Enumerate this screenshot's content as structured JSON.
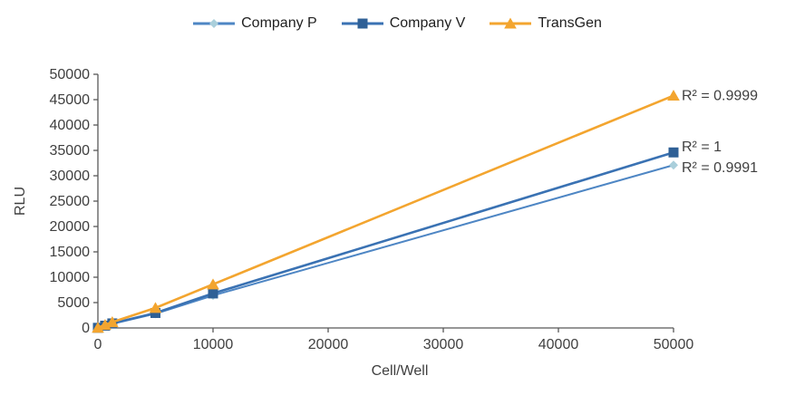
{
  "chart_data": {
    "type": "line",
    "title": "",
    "xlabel": "Cell/Well",
    "ylabel": "RLU",
    "xlim": [
      0,
      50000
    ],
    "ylim": [
      0,
      50000
    ],
    "grid": false,
    "legend_position": "top-center",
    "axis_color": "#595959",
    "tick_text_color": "#3f3f3f",
    "xtick_values": [
      0,
      10000,
      20000,
      30000,
      40000,
      50000
    ],
    "xtick_labels": [
      "0",
      "10000",
      "20000",
      "30000",
      "40000",
      "50000"
    ],
    "ytick_values": [
      0,
      5000,
      10000,
      15000,
      20000,
      25000,
      30000,
      35000,
      40000,
      45000,
      50000
    ],
    "ytick_labels": [
      "0",
      "5000",
      "10000",
      "15000",
      "20000",
      "25000",
      "30000",
      "35000",
      "40000",
      "45000",
      "50000"
    ],
    "x": [
      0,
      625,
      1250,
      5000,
      10000,
      50000
    ],
    "series": [
      {
        "name": "Company P",
        "r2_label": "R² = 0.9991",
        "r2_dy": 3,
        "line_color": "#4e86c4",
        "line_width": 2,
        "marker": "diamond",
        "marker_color": "#aacfdb",
        "marker_size": 5,
        "values": [
          30,
          400,
          800,
          2800,
          6400,
          32100
        ]
      },
      {
        "name": "Company V",
        "r2_label": "R² = 1",
        "r2_dy": -6,
        "line_color": "#3a72b3",
        "line_width": 2.6,
        "marker": "square",
        "marker_color": "#2f6096",
        "marker_size": 5.5,
        "values": [
          30,
          450,
          900,
          2950,
          6800,
          34600
        ]
      },
      {
        "name": "TransGen",
        "r2_label": "R² = 0.9999",
        "r2_dy": 0,
        "line_color": "#f3a52f",
        "line_width": 2.6,
        "marker": "triangle",
        "marker_color": "#f3a52f",
        "marker_size": 6.5,
        "values": [
          50,
          600,
          1150,
          3950,
          8600,
          45800
        ]
      }
    ]
  }
}
